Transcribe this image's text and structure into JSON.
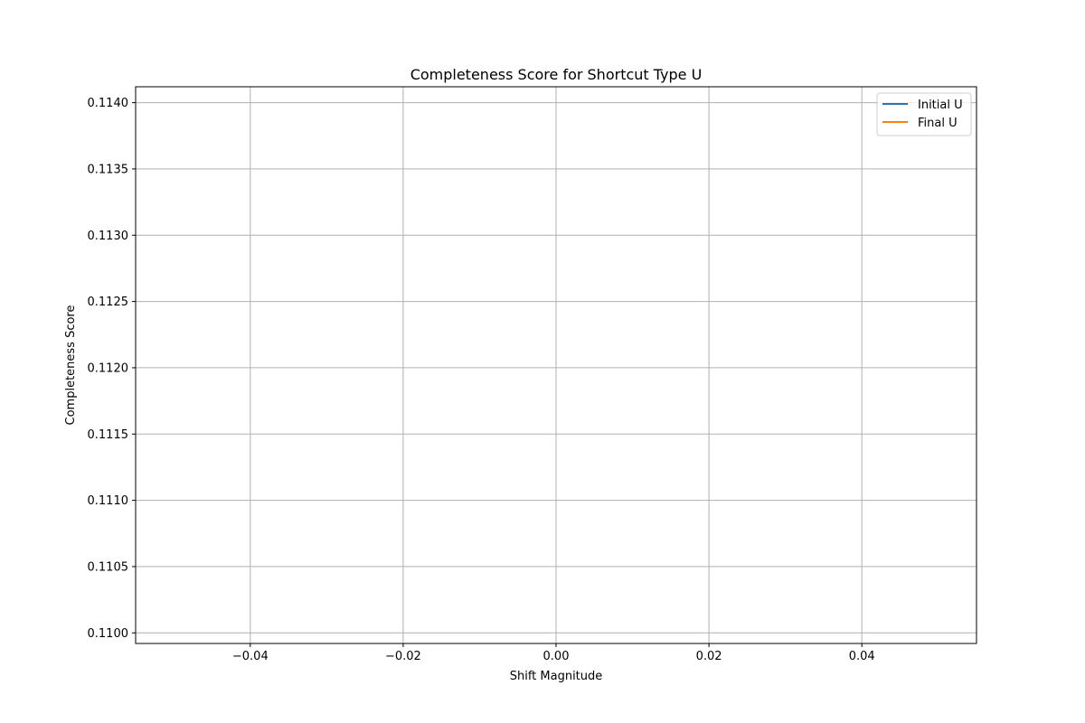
{
  "chart_data": {
    "type": "line",
    "title": "Completeness Score for Shortcut Type U",
    "xlabel": "Shift Magnitude",
    "ylabel": "Completeness Score",
    "xlim": [
      -0.055,
      0.055
    ],
    "ylim": [
      0.10992,
      0.11412
    ],
    "xticks": [
      -0.04,
      -0.02,
      0.0,
      0.02,
      0.04
    ],
    "xtick_labels": [
      "−0.04",
      "−0.02",
      "0.00",
      "0.02",
      "0.04"
    ],
    "yticks": [
      0.11,
      0.1105,
      0.111,
      0.1115,
      0.112,
      0.1125,
      0.113,
      0.1135,
      0.114
    ],
    "ytick_labels": [
      "0.1100",
      "0.1105",
      "0.1110",
      "0.1115",
      "0.1120",
      "0.1125",
      "0.1130",
      "0.1135",
      "0.1140"
    ],
    "grid": true,
    "legend_position": "top-right",
    "series": [
      {
        "name": "Initial U",
        "color": "#1f77b4",
        "x": [],
        "y": []
      },
      {
        "name": "Final U",
        "color": "#ff7f0e",
        "x": [],
        "y": []
      }
    ]
  }
}
